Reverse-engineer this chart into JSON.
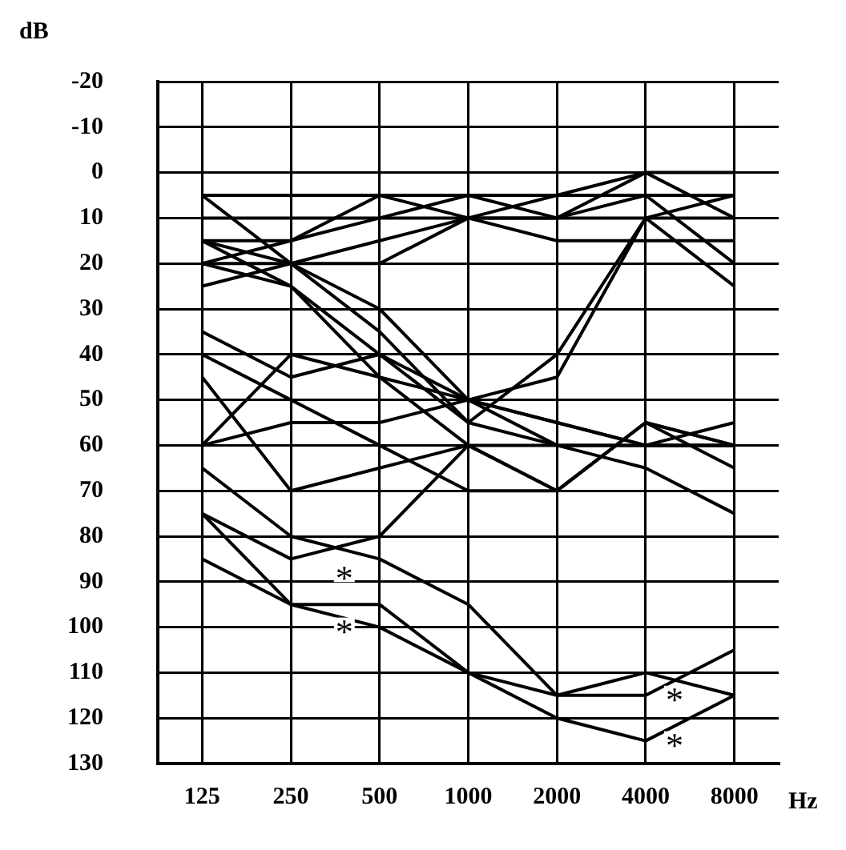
{
  "chart_data": {
    "type": "line",
    "xlabel": "Hz",
    "ylabel": "dB",
    "categories": [
      "125",
      "250",
      "500",
      "1000",
      "2000",
      "4000",
      "8000"
    ],
    "ylim": [
      130,
      -20
    ],
    "yticks": [
      -20,
      -10,
      0,
      10,
      20,
      30,
      40,
      50,
      60,
      70,
      80,
      90,
      100,
      110,
      120,
      130
    ],
    "grid": true,
    "legend": false,
    "marker": "none",
    "line_style": "solid",
    "series": [
      {
        "color": "#000000",
        "values": [
          5,
          5,
          5,
          5,
          5,
          5,
          5
        ]
      },
      {
        "color": "#000000",
        "values": [
          15,
          15,
          5,
          10,
          5,
          0,
          10
        ]
      },
      {
        "color": "#000000",
        "values": [
          20,
          15,
          10,
          10,
          15,
          15,
          15
        ]
      },
      {
        "color": "#000000",
        "values": [
          10,
          10,
          10,
          5,
          10,
          0,
          0
        ]
      },
      {
        "color": "#000000",
        "values": [
          25,
          20,
          15,
          10,
          10,
          10,
          25
        ]
      },
      {
        "color": "#000000",
        "values": [
          20,
          20,
          20,
          10,
          10,
          5,
          20
        ]
      },
      {
        "color": "#000000",
        "values": [
          5,
          20,
          35,
          55,
          40,
          10,
          5
        ]
      },
      {
        "color": "#000000",
        "values": [
          15,
          20,
          30,
          50,
          45,
          10,
          10
        ]
      },
      {
        "color": "#000000",
        "values": [
          20,
          25,
          40,
          55,
          60,
          65,
          75
        ]
      },
      {
        "color": "#000000",
        "values": [
          15,
          25,
          45,
          60,
          70,
          55,
          60
        ]
      },
      {
        "color": "#000000",
        "values": [
          35,
          45,
          40,
          50,
          55,
          60,
          60
        ]
      },
      {
        "color": "#000000",
        "values": [
          45,
          70,
          65,
          60,
          70,
          55,
          60
        ]
      },
      {
        "color": "#000000",
        "values": [
          60,
          40,
          45,
          50,
          60,
          60,
          55
        ]
      },
      {
        "color": "#000000",
        "values": [
          60,
          55,
          55,
          50,
          55,
          60,
          60
        ]
      },
      {
        "color": "#000000",
        "values": [
          40,
          50,
          60,
          70,
          70,
          55,
          65
        ]
      },
      {
        "color": "#000000",
        "values": [
          65,
          80,
          85,
          95,
          115,
          115,
          105
        ]
      },
      {
        "color": "#000000",
        "values": [
          75,
          85,
          80,
          60,
          60,
          60,
          60
        ]
      },
      {
        "color": "#000000",
        "values": [
          85,
          95,
          95,
          110,
          120,
          125,
          115
        ]
      },
      {
        "color": "#000000",
        "values": [
          75,
          95,
          100,
          110,
          115,
          110,
          115
        ]
      }
    ],
    "annotations": [
      {
        "text": "*",
        "x": "500",
        "y": 95
      },
      {
        "text": "*",
        "x": "500",
        "y": 100
      },
      {
        "text": "*",
        "x": "4000",
        "y": 115
      },
      {
        "text": "*",
        "x": "4000",
        "y": 125
      }
    ]
  }
}
